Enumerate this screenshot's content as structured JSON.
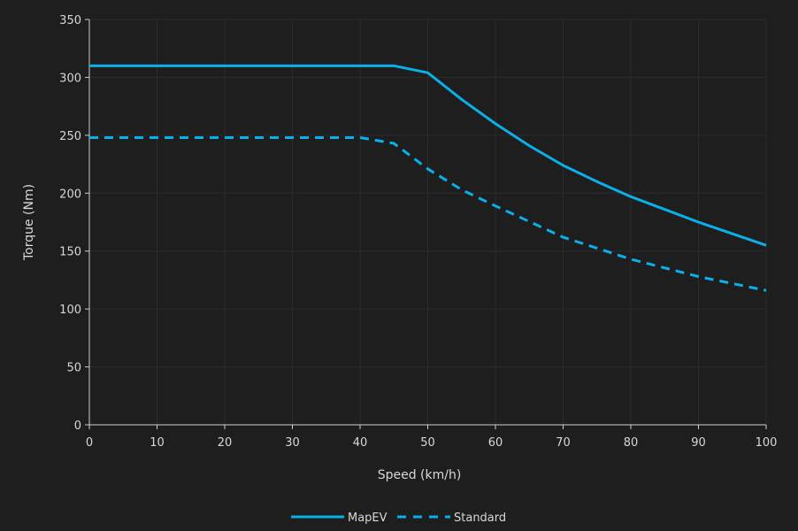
{
  "chart_data": {
    "type": "line",
    "title": "",
    "xlabel": "Speed (km/h)",
    "ylabel": "Torque (Nm)",
    "xlim": [
      0,
      100
    ],
    "ylim": [
      0,
      350
    ],
    "xticks": [
      0,
      10,
      20,
      30,
      40,
      50,
      60,
      70,
      80,
      90,
      100
    ],
    "yticks": [
      0,
      50,
      100,
      150,
      200,
      250,
      300,
      350
    ],
    "grid": true,
    "legend_position": "bottom",
    "colors": {
      "MapEV": "#0ab0ea",
      "Standard": "#0ab0ea",
      "background": "#1e1e1e",
      "grid": "#2c2c2c"
    },
    "series": [
      {
        "name": "MapEV",
        "style": "solid",
        "x": [
          0,
          45,
          50,
          55,
          60,
          65,
          70,
          75,
          80,
          90,
          100
        ],
        "y": [
          310,
          310,
          304,
          281,
          260,
          241,
          224,
          210,
          197,
          175,
          155
        ]
      },
      {
        "name": "Standard",
        "style": "dashed",
        "x": [
          0,
          40,
          45,
          50,
          55,
          60,
          70,
          80,
          90,
          100
        ],
        "y": [
          248,
          248,
          243,
          221,
          203,
          189,
          162,
          143,
          128,
          116
        ]
      }
    ]
  }
}
